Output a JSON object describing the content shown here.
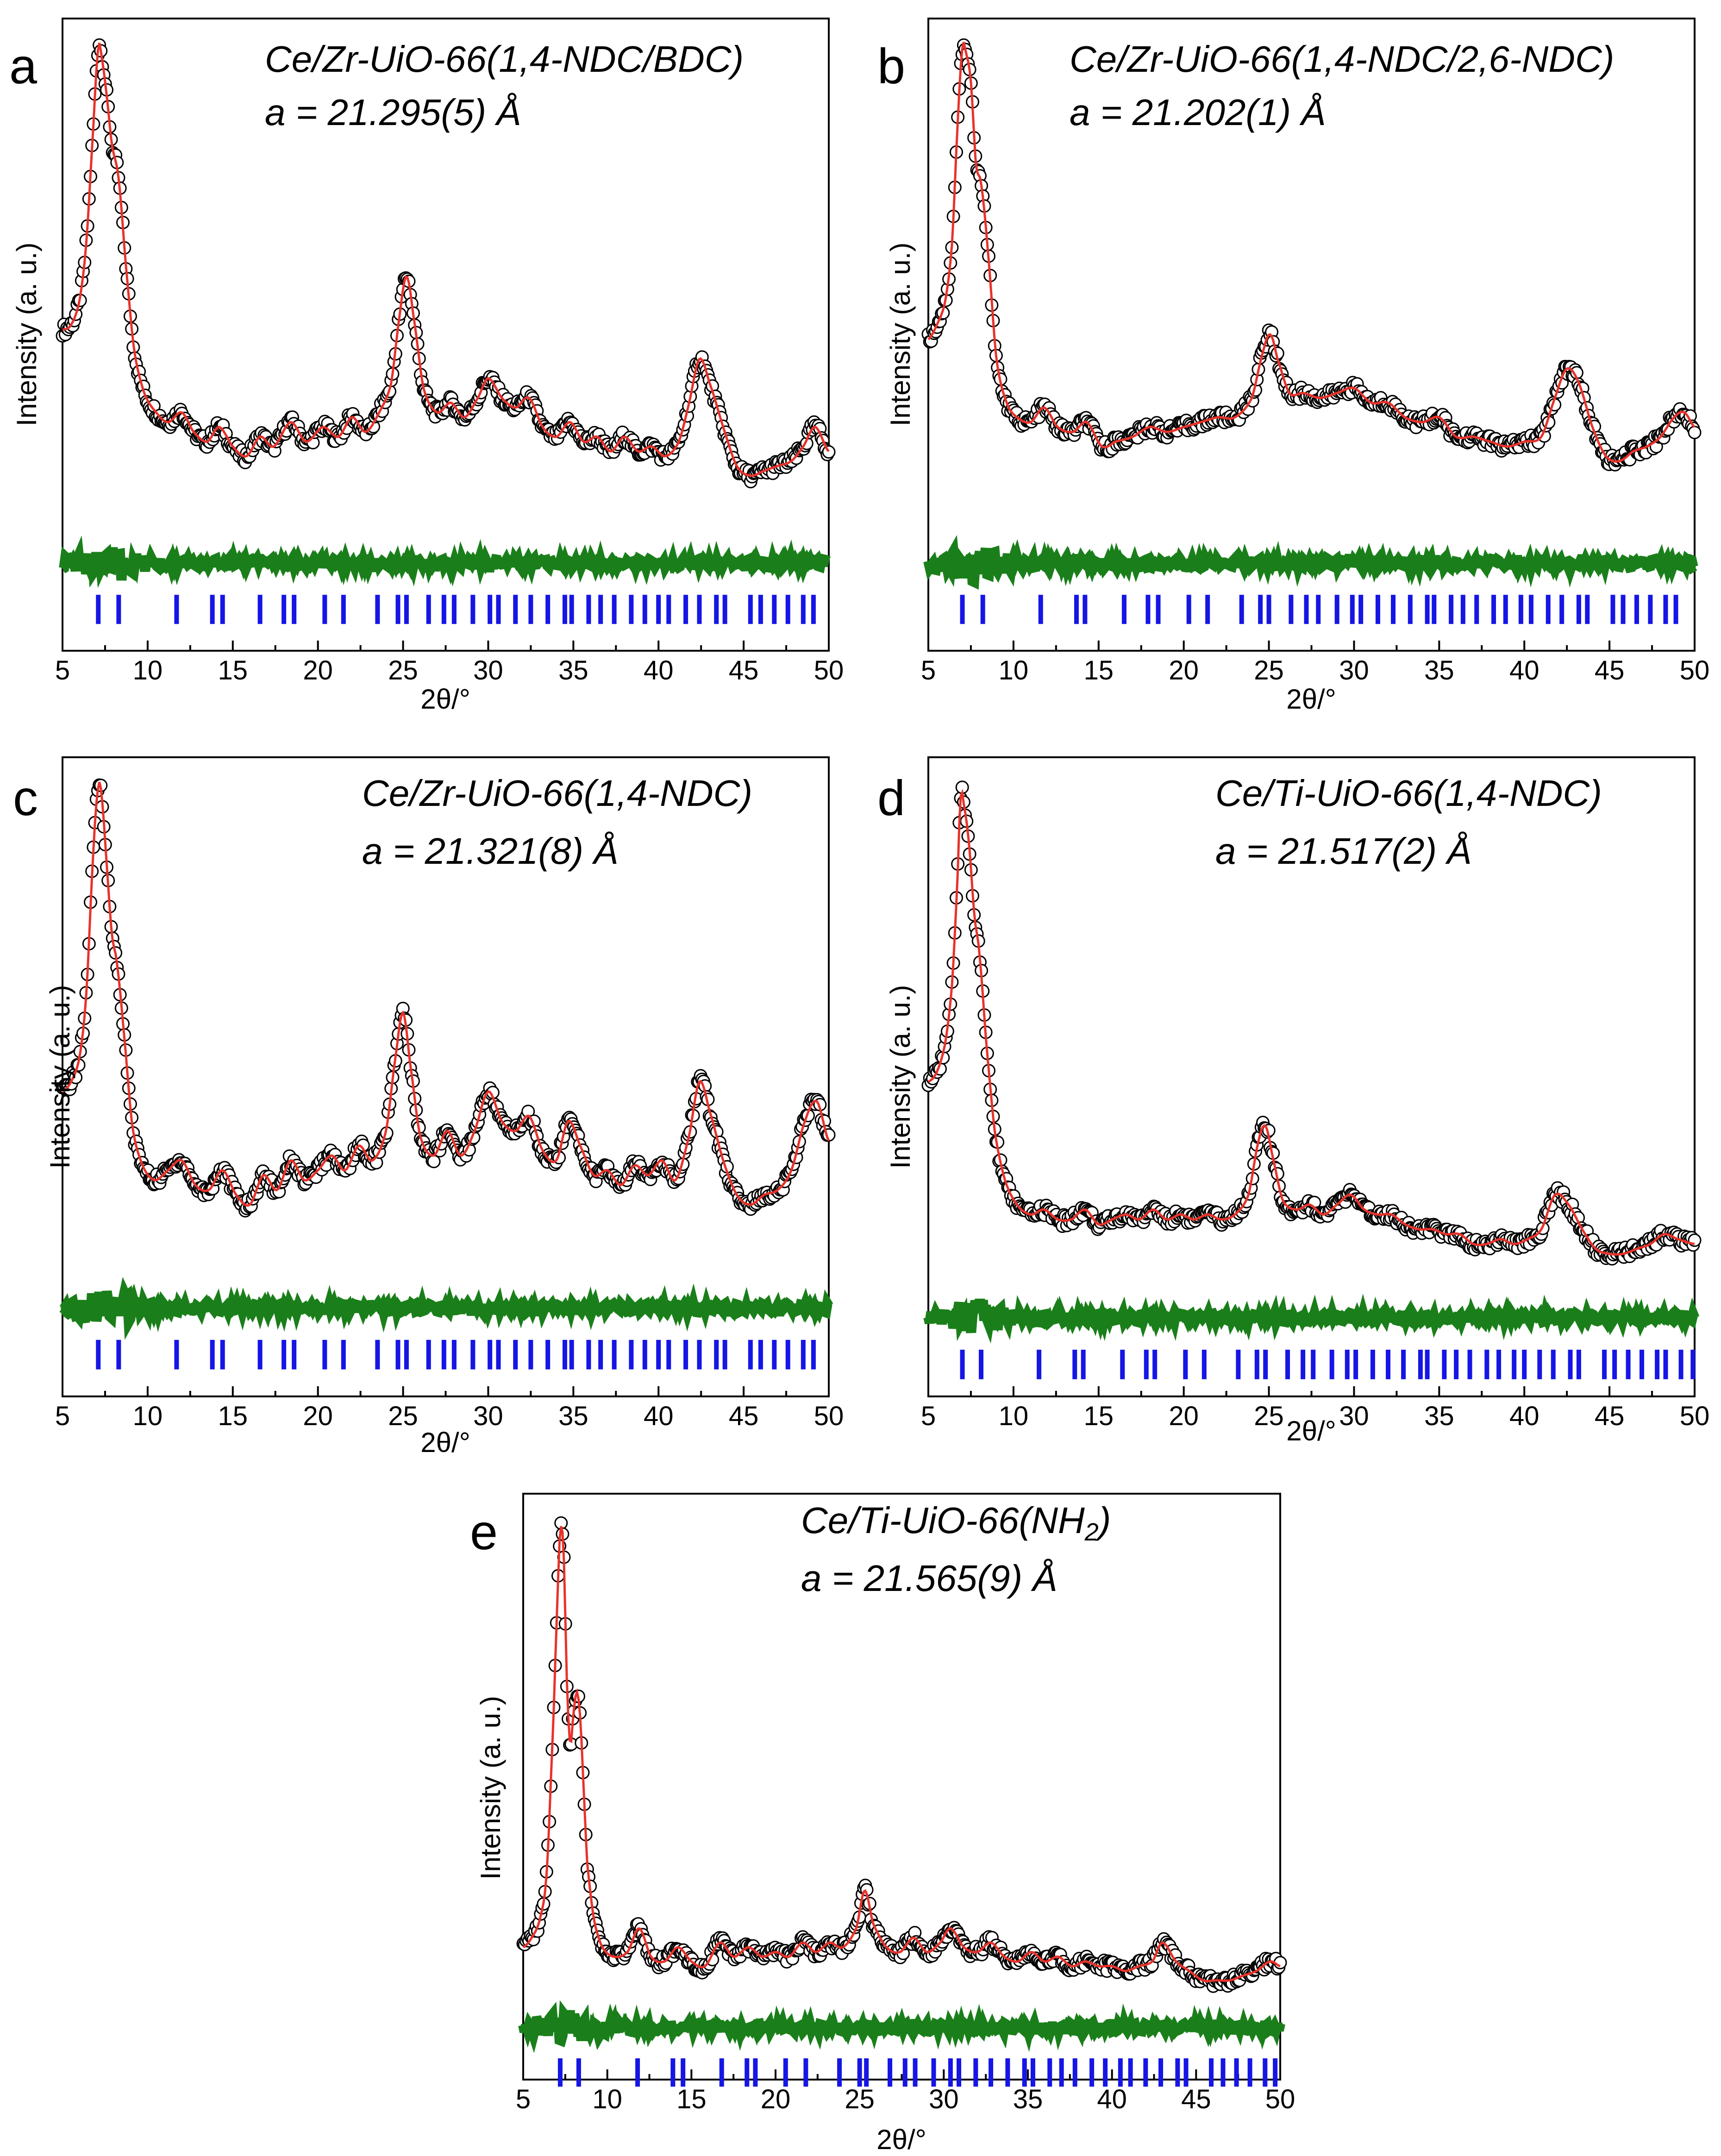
{
  "colors": {
    "observed_marker": "#000000",
    "calculated_line": "#e8322a",
    "difference_line": "#1a7f1a",
    "bragg_ticks": "#1515e6"
  },
  "chart_data": [
    {
      "type": "line",
      "panel": "a",
      "title": "Ce/Zr-UiO-66(1,4-NDC/BDC)",
      "lattice": "a = 21.295(5) Å",
      "xlabel": "2θ/°",
      "ylabel": "Intensity (a. u.)",
      "xlim": [
        5,
        50
      ],
      "ylim": [
        -0.22,
        1.08
      ],
      "xticks": [
        "5",
        "10",
        "15",
        "20",
        "25",
        "30",
        "35",
        "40",
        "45",
        "50"
      ],
      "series": [
        {
          "name": "observed",
          "style": "open-circles"
        },
        {
          "name": "calculated",
          "style": "red-line"
        },
        {
          "name": "difference",
          "style": "green-line"
        },
        {
          "name": "Bragg positions",
          "style": "blue-ticks"
        }
      ],
      "x": [
        5.0,
        5.5,
        6.0,
        6.4,
        6.8,
        7.1,
        7.3,
        7.6,
        7.9,
        8.3,
        8.7,
        9.2,
        9.8,
        10.5,
        11.2,
        12.0,
        12.7,
        13.5,
        14.2,
        15.0,
        15.8,
        16.6,
        17.4,
        18.4,
        19.3,
        20.3,
        21.2,
        22.0,
        22.8,
        23.6,
        24.3,
        24.8,
        25.2,
        25.6,
        26.2,
        27.0,
        27.8,
        28.6,
        29.4,
        30.0,
        30.8,
        31.6,
        32.4,
        33.2,
        34.0,
        34.8,
        35.6,
        36.4,
        37.2,
        38.0,
        38.8,
        39.6,
        40.4,
        41.2,
        41.8,
        42.4,
        43.0,
        43.8,
        44.6,
        45.4,
        46.2,
        47.0,
        47.8,
        48.5,
        49.2,
        50.0
      ],
      "y_obs": [
        0.44,
        0.45,
        0.5,
        0.62,
        0.85,
        1.02,
        1.0,
        0.92,
        0.82,
        0.75,
        0.58,
        0.4,
        0.31,
        0.27,
        0.25,
        0.27,
        0.23,
        0.21,
        0.24,
        0.2,
        0.18,
        0.22,
        0.2,
        0.25,
        0.21,
        0.24,
        0.22,
        0.26,
        0.23,
        0.27,
        0.33,
        0.47,
        0.55,
        0.47,
        0.32,
        0.27,
        0.29,
        0.26,
        0.3,
        0.34,
        0.3,
        0.28,
        0.3,
        0.24,
        0.22,
        0.25,
        0.21,
        0.22,
        0.19,
        0.22,
        0.19,
        0.2,
        0.18,
        0.21,
        0.29,
        0.38,
        0.33,
        0.24,
        0.16,
        0.14,
        0.15,
        0.16,
        0.17,
        0.2,
        0.24,
        0.19
      ],
      "difference_offset": -0.04,
      "bragg_positions": [
        7.1,
        8.3,
        11.7,
        13.8,
        14.4,
        16.6,
        18.0,
        18.6,
        20.4,
        21.5,
        23.5,
        24.7,
        25.2,
        26.5,
        27.4,
        28.0,
        29.1,
        30.1,
        30.6,
        31.6,
        32.5,
        33.5,
        34.5,
        34.9,
        35.9,
        36.6,
        37.4,
        38.4,
        39.2,
        40.0,
        40.6,
        41.6,
        42.4,
        43.4,
        43.9,
        45.4,
        46.0,
        46.8,
        47.6,
        48.5,
        49.1
      ]
    },
    {
      "type": "line",
      "panel": "b",
      "title": "Ce/Zr-UiO-66(1,4-NDC/2,6-NDC)",
      "lattice": "a = 21.202(1) Å",
      "xlabel": "2θ/°",
      "ylabel": "Intensity (a. u.)",
      "xlim": [
        5,
        50
      ],
      "ylim": [
        -0.22,
        1.08
      ],
      "xticks": [
        "5",
        "10",
        "15",
        "20",
        "25",
        "30",
        "35",
        "40",
        "45",
        "50"
      ],
      "series": [
        {
          "name": "observed",
          "style": "open-circles"
        },
        {
          "name": "calculated",
          "style": "red-line"
        },
        {
          "name": "difference",
          "style": "green-line"
        },
        {
          "name": "Bragg positions",
          "style": "blue-ticks"
        }
      ],
      "x": [
        5.0,
        5.5,
        6.0,
        6.4,
        6.7,
        7.0,
        7.2,
        7.5,
        7.8,
        8.1,
        8.5,
        9.0,
        9.6,
        10.2,
        11.0,
        11.8,
        12.6,
        13.5,
        14.3,
        15.2,
        16.0,
        17.0,
        18.0,
        19.0,
        20.0,
        21.0,
        22.0,
        23.0,
        24.0,
        24.7,
        25.1,
        25.5,
        26.2,
        27.0,
        28.0,
        29.0,
        30.0,
        31.0,
        32.0,
        33.0,
        34.0,
        35.0,
        36.0,
        37.0,
        38.0,
        39.0,
        40.0,
        41.0,
        41.8,
        42.5,
        43.2,
        44.0,
        44.8,
        45.6,
        46.4,
        47.2,
        48.0,
        48.8,
        49.4,
        50.0
      ],
      "y_obs": [
        0.42,
        0.45,
        0.5,
        0.62,
        0.85,
        1.02,
        1.01,
        0.95,
        0.78,
        0.74,
        0.6,
        0.38,
        0.29,
        0.26,
        0.25,
        0.28,
        0.24,
        0.23,
        0.25,
        0.2,
        0.21,
        0.22,
        0.24,
        0.23,
        0.24,
        0.25,
        0.26,
        0.26,
        0.3,
        0.4,
        0.43,
        0.38,
        0.31,
        0.31,
        0.3,
        0.31,
        0.32,
        0.29,
        0.29,
        0.26,
        0.25,
        0.26,
        0.22,
        0.22,
        0.21,
        0.2,
        0.21,
        0.22,
        0.3,
        0.36,
        0.33,
        0.24,
        0.18,
        0.17,
        0.19,
        0.2,
        0.22,
        0.26,
        0.27,
        0.24
      ],
      "difference_offset": -0.04,
      "bragg_positions": [
        7.0,
        8.2,
        11.6,
        13.7,
        14.2,
        16.5,
        17.9,
        18.5,
        20.3,
        21.4,
        23.4,
        24.5,
        25.0,
        26.3,
        27.2,
        27.9,
        29.0,
        29.9,
        30.4,
        31.4,
        32.3,
        33.3,
        34.3,
        34.7,
        35.7,
        36.4,
        37.2,
        38.2,
        38.9,
        39.8,
        40.4,
        41.4,
        42.2,
        43.2,
        43.7,
        45.2,
        45.8,
        46.6,
        47.4,
        48.3,
        48.9
      ]
    },
    {
      "type": "line",
      "panel": "c",
      "title": "Ce/Zr-UiO-66(1,4-NDC)",
      "lattice": "a = 21.321(8) Å",
      "xlabel": "2θ/°",
      "ylabel": "Intensity (a. u.)",
      "xlim": [
        5,
        50
      ],
      "ylim": [
        -0.22,
        1.08
      ],
      "xticks": [
        "5",
        "10",
        "15",
        "20",
        "25",
        "30",
        "35",
        "40",
        "45",
        "50"
      ],
      "series": [
        {
          "name": "observed",
          "style": "open-circles"
        },
        {
          "name": "calculated",
          "style": "red-line"
        },
        {
          "name": "difference",
          "style": "green-line"
        },
        {
          "name": "Bragg positions",
          "style": "blue-ticks"
        }
      ],
      "x": [
        5.0,
        5.5,
        6.0,
        6.4,
        6.8,
        7.1,
        7.3,
        7.6,
        7.9,
        8.2,
        8.6,
        9.1,
        9.7,
        10.4,
        11.2,
        12.0,
        12.8,
        13.6,
        14.4,
        15.2,
        16.0,
        16.8,
        17.6,
        18.4,
        19.2,
        20.0,
        20.8,
        21.6,
        22.4,
        23.2,
        24.0,
        24.6,
        25.0,
        25.4,
        26.0,
        26.8,
        27.6,
        28.4,
        29.2,
        30.0,
        30.8,
        31.6,
        32.4,
        33.2,
        34.0,
        34.7,
        35.4,
        36.2,
        37.0,
        37.8,
        38.6,
        39.4,
        40.2,
        41.0,
        41.8,
        42.4,
        43.0,
        43.8,
        44.6,
        45.4,
        46.2,
        47.0,
        47.8,
        48.6,
        49.3,
        50.0
      ],
      "y_obs": [
        0.4,
        0.42,
        0.47,
        0.6,
        0.88,
        1.02,
        1.0,
        0.86,
        0.72,
        0.66,
        0.52,
        0.33,
        0.25,
        0.22,
        0.24,
        0.26,
        0.21,
        0.2,
        0.24,
        0.19,
        0.17,
        0.23,
        0.2,
        0.26,
        0.22,
        0.24,
        0.27,
        0.24,
        0.29,
        0.26,
        0.32,
        0.48,
        0.56,
        0.46,
        0.31,
        0.27,
        0.32,
        0.27,
        0.32,
        0.4,
        0.34,
        0.32,
        0.35,
        0.28,
        0.26,
        0.34,
        0.29,
        0.23,
        0.24,
        0.21,
        0.25,
        0.23,
        0.26,
        0.22,
        0.31,
        0.42,
        0.36,
        0.26,
        0.19,
        0.17,
        0.19,
        0.2,
        0.24,
        0.34,
        0.38,
        0.3
      ],
      "difference_offset": -0.04,
      "bragg_positions": [
        7.1,
        8.3,
        11.7,
        13.8,
        14.4,
        16.6,
        18.0,
        18.6,
        20.4,
        21.5,
        23.5,
        24.7,
        25.2,
        26.5,
        27.4,
        28.0,
        29.1,
        30.1,
        30.6,
        31.6,
        32.5,
        33.5,
        34.5,
        34.9,
        35.9,
        36.6,
        37.4,
        38.4,
        39.2,
        40.0,
        40.6,
        41.6,
        42.4,
        43.4,
        43.9,
        45.4,
        46.0,
        46.8,
        47.6,
        48.5,
        49.1
      ]
    },
    {
      "type": "line",
      "panel": "d",
      "title": "Ce/Ti-UiO-66(1,4-NDC)",
      "lattice": "a = 21.517(2) Å",
      "xlabel": "2θ/°",
      "ylabel": "Intensity (a. u.)",
      "xlim": [
        5,
        50
      ],
      "ylim": [
        -0.22,
        1.08
      ],
      "xticks": [
        "5",
        "10",
        "15",
        "20",
        "25",
        "30",
        "35",
        "40",
        "45",
        "50"
      ],
      "series": [
        {
          "name": "observed",
          "style": "open-circles"
        },
        {
          "name": "calculated",
          "style": "red-line"
        },
        {
          "name": "difference",
          "style": "green-line"
        },
        {
          "name": "Bragg positions",
          "style": "blue-ticks"
        }
      ],
      "x": [
        5.0,
        5.5,
        6.0,
        6.4,
        6.7,
        6.9,
        7.1,
        7.4,
        7.7,
        8.0,
        8.4,
        8.9,
        9.5,
        10.2,
        11.0,
        11.8,
        12.6,
        13.4,
        14.2,
        15.0,
        15.8,
        16.6,
        17.4,
        18.2,
        19.0,
        19.8,
        20.6,
        21.4,
        22.2,
        23.0,
        23.8,
        24.4,
        24.8,
        25.2,
        25.8,
        26.6,
        27.4,
        28.2,
        29.0,
        29.8,
        30.6,
        31.4,
        32.2,
        33.0,
        33.8,
        34.6,
        35.4,
        36.2,
        37.0,
        37.8,
        38.6,
        39.4,
        40.2,
        41.0,
        41.8,
        42.6,
        43.4,
        44.2,
        45.0,
        45.8,
        46.6,
        47.4,
        48.2,
        49.0,
        50.0
      ],
      "y_obs": [
        0.42,
        0.44,
        0.5,
        0.62,
        0.82,
        1.0,
        0.98,
        0.9,
        0.76,
        0.68,
        0.5,
        0.32,
        0.22,
        0.17,
        0.15,
        0.16,
        0.14,
        0.14,
        0.16,
        0.13,
        0.14,
        0.15,
        0.14,
        0.16,
        0.14,
        0.15,
        0.14,
        0.15,
        0.14,
        0.15,
        0.19,
        0.3,
        0.33,
        0.27,
        0.18,
        0.16,
        0.17,
        0.15,
        0.17,
        0.19,
        0.16,
        0.15,
        0.15,
        0.13,
        0.12,
        0.12,
        0.11,
        0.11,
        0.09,
        0.09,
        0.1,
        0.09,
        0.1,
        0.12,
        0.19,
        0.17,
        0.12,
        0.08,
        0.07,
        0.07,
        0.08,
        0.09,
        0.11,
        0.1,
        0.09
      ],
      "difference_offset": -0.06,
      "bragg_positions": [
        7.0,
        8.1,
        11.5,
        13.6,
        14.1,
        16.4,
        17.8,
        18.3,
        20.1,
        21.2,
        23.2,
        24.3,
        24.8,
        26.1,
        27.0,
        27.6,
        28.7,
        29.6,
        30.1,
        31.1,
        32.0,
        32.9,
        33.9,
        34.3,
        35.3,
        36.0,
        36.8,
        37.8,
        38.5,
        39.4,
        40.0,
        40.9,
        41.7,
        42.7,
        43.2,
        44.7,
        45.3,
        46.1,
        46.9,
        47.8,
        48.3,
        49.2,
        49.9
      ]
    },
    {
      "type": "line",
      "panel": "e",
      "title": "Ce/Ti-UiO-66(NH",
      "title_subscript": "2",
      "title_suffix": ")",
      "lattice": "a = 21.565(9) Å",
      "xlabel": "2θ/°",
      "ylabel": "Intensity (a. u.)",
      "xlim": [
        5,
        50
      ],
      "ylim": [
        -0.16,
        1.08
      ],
      "xticks": [
        "5",
        "10",
        "15",
        "20",
        "25",
        "30",
        "35",
        "40",
        "45",
        "50"
      ],
      "series": [
        {
          "name": "observed",
          "style": "open-circles"
        },
        {
          "name": "calculated",
          "style": "red-line"
        },
        {
          "name": "difference",
          "style": "green-line"
        },
        {
          "name": "Bragg positions",
          "style": "blue-ticks"
        }
      ],
      "x": [
        5.0,
        5.5,
        6.0,
        6.4,
        6.8,
        7.0,
        7.2,
        7.4,
        7.6,
        7.8,
        8.0,
        8.2,
        8.4,
        8.6,
        8.8,
        9.2,
        9.7,
        10.4,
        11.2,
        11.9,
        12.6,
        13.4,
        14.2,
        15.0,
        15.8,
        16.7,
        17.5,
        18.4,
        19.2,
        20.0,
        20.8,
        21.6,
        22.4,
        23.2,
        24.0,
        24.8,
        25.3,
        25.8,
        26.6,
        27.4,
        28.2,
        29.0,
        29.8,
        30.4,
        31.2,
        32.0,
        32.8,
        33.6,
        34.4,
        35.2,
        36.0,
        36.8,
        37.6,
        38.4,
        39.2,
        40.0,
        40.8,
        41.6,
        42.4,
        43.0,
        43.8,
        44.6,
        45.4,
        46.2,
        47.0,
        47.8,
        48.6,
        49.4,
        50.0
      ],
      "y_obs": [
        0.12,
        0.14,
        0.18,
        0.28,
        0.6,
        0.82,
        1.0,
        0.96,
        0.68,
        0.55,
        0.62,
        0.66,
        0.6,
        0.45,
        0.3,
        0.18,
        0.12,
        0.1,
        0.11,
        0.16,
        0.1,
        0.09,
        0.12,
        0.09,
        0.08,
        0.13,
        0.1,
        0.12,
        0.1,
        0.11,
        0.1,
        0.13,
        0.11,
        0.13,
        0.12,
        0.16,
        0.24,
        0.17,
        0.12,
        0.11,
        0.14,
        0.11,
        0.13,
        0.16,
        0.12,
        0.11,
        0.13,
        0.1,
        0.09,
        0.11,
        0.09,
        0.1,
        0.08,
        0.09,
        0.08,
        0.08,
        0.07,
        0.08,
        0.09,
        0.13,
        0.09,
        0.07,
        0.05,
        0.05,
        0.05,
        0.06,
        0.07,
        0.09,
        0.08
      ],
      "difference_offset": -0.05,
      "bragg_positions": [
        7.2,
        8.3,
        11.8,
        13.9,
        14.5,
        16.8,
        18.3,
        18.8,
        20.6,
        21.8,
        23.8,
        25.0,
        25.4,
        26.8,
        27.7,
        28.3,
        29.4,
        30.4,
        30.9,
        31.9,
        32.8,
        33.8,
        34.8,
        35.3,
        36.3,
        37.0,
        37.8,
        38.8,
        39.6,
        40.5,
        41.1,
        42.0,
        42.9,
        43.9,
        44.4,
        45.9,
        46.6,
        47.4,
        48.2,
        49.1,
        49.7
      ]
    }
  ]
}
